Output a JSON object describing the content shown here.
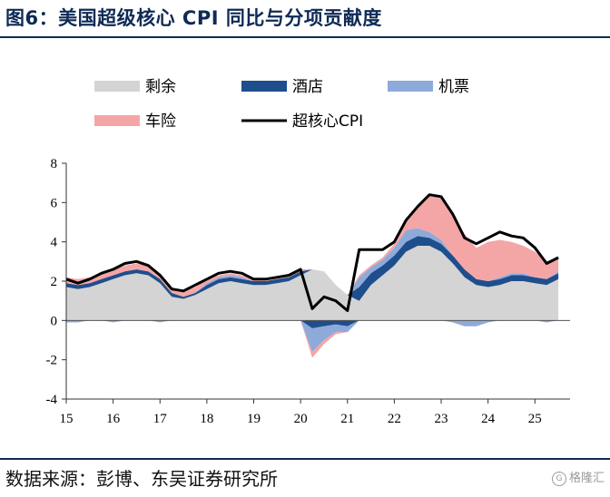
{
  "title": "图6：美国超级核心 CPI 同比与分项贡献度",
  "source": "数据来源：彭博、东吴证券研究所",
  "watermark": "格隆汇",
  "colors": {
    "remainder": "#d4d4d4",
    "hotel": "#1f4e8c",
    "airfare": "#8eaadb",
    "auto_insurance": "#f4a6a6",
    "supercore": "#000000",
    "title": "#0f2a55"
  },
  "chart_data": {
    "type": "area",
    "title": "",
    "xlabel": "",
    "ylabel": "",
    "ylim": [
      -4,
      8
    ],
    "yticks": [
      -4,
      -2,
      0,
      2,
      4,
      6,
      8
    ],
    "xlim": [
      2015.0,
      2025.75
    ],
    "xtick_values": [
      2015,
      2016,
      2017,
      2018,
      2019,
      2020,
      2021,
      2022,
      2023,
      2024,
      2025
    ],
    "xtick_labels": [
      "15",
      "16",
      "17",
      "18",
      "19",
      "20",
      "21",
      "22",
      "23",
      "24",
      "25"
    ],
    "grid": false,
    "legend_position": "top",
    "x": [
      2015.0,
      2015.25,
      2015.5,
      2015.75,
      2016.0,
      2016.25,
      2016.5,
      2016.75,
      2017.0,
      2017.25,
      2017.5,
      2017.75,
      2018.0,
      2018.25,
      2018.5,
      2018.75,
      2019.0,
      2019.25,
      2019.5,
      2019.75,
      2020.0,
      2020.25,
      2020.5,
      2020.75,
      2021.0,
      2021.25,
      2021.5,
      2021.75,
      2022.0,
      2022.25,
      2022.5,
      2022.75,
      2023.0,
      2023.25,
      2023.5,
      2023.75,
      2024.0,
      2024.25,
      2024.5,
      2024.75,
      2025.0,
      2025.25,
      2025.5
    ],
    "series": [
      {
        "name": "剩余",
        "key": "remainder",
        "values": [
          1.7,
          1.6,
          1.7,
          1.9,
          2.1,
          2.3,
          2.4,
          2.3,
          1.9,
          1.2,
          1.1,
          1.3,
          1.6,
          1.9,
          2.0,
          1.9,
          1.8,
          1.8,
          1.9,
          2.0,
          2.3,
          2.6,
          2.5,
          1.8,
          1.3,
          1.0,
          1.8,
          2.3,
          2.8,
          3.5,
          3.8,
          3.8,
          3.5,
          2.9,
          2.2,
          1.8,
          1.7,
          1.8,
          2.0,
          2.0,
          1.9,
          1.8,
          2.1
        ]
      },
      {
        "name": "酒店",
        "key": "hotel",
        "values": [
          0.2,
          0.2,
          0.2,
          0.2,
          0.2,
          0.2,
          0.2,
          0.2,
          0.2,
          0.2,
          0.1,
          0.1,
          0.2,
          0.2,
          0.2,
          0.2,
          0.2,
          0.2,
          0.2,
          0.2,
          0.2,
          -0.4,
          -0.3,
          -0.2,
          -0.3,
          0.7,
          0.6,
          0.5,
          0.5,
          0.5,
          0.5,
          0.4,
          0.4,
          0.4,
          0.4,
          0.3,
          0.3,
          0.3,
          0.3,
          0.3,
          0.3,
          0.3,
          0.3
        ]
      },
      {
        "name": "机票",
        "key": "airfare",
        "values": [
          -0.1,
          -0.1,
          0.0,
          0.0,
          -0.1,
          0.0,
          0.0,
          0.0,
          -0.1,
          0.0,
          0.0,
          0.0,
          0.1,
          0.1,
          0.1,
          0.1,
          0.0,
          0.0,
          0.0,
          0.0,
          0.0,
          -1.2,
          -0.7,
          -0.4,
          -0.3,
          0.5,
          0.3,
          0.3,
          0.4,
          0.6,
          0.4,
          0.3,
          0.2,
          -0.1,
          -0.3,
          -0.3,
          -0.1,
          0.1,
          0.1,
          0.1,
          0.0,
          -0.1,
          0.1
        ]
      },
      {
        "name": "车险",
        "key": "auto_insurance",
        "values": [
          0.3,
          0.3,
          0.3,
          0.3,
          0.3,
          0.3,
          0.3,
          0.3,
          0.3,
          0.3,
          0.3,
          0.3,
          0.2,
          0.1,
          0.1,
          0.1,
          0.1,
          0.1,
          0.1,
          0.1,
          0.1,
          -0.3,
          -0.2,
          -0.1,
          0.0,
          0.1,
          0.1,
          0.1,
          0.2,
          0.5,
          1.1,
          1.8,
          2.2,
          2.1,
          1.8,
          1.6,
          2.0,
          1.9,
          1.6,
          1.4,
          1.3,
          0.9,
          0.7
        ]
      },
      {
        "name": "超核心CPI",
        "key": "supercore",
        "values": [
          2.1,
          1.9,
          2.1,
          2.4,
          2.6,
          2.9,
          3.0,
          2.8,
          2.3,
          1.6,
          1.5,
          1.8,
          2.1,
          2.4,
          2.5,
          2.4,
          2.1,
          2.1,
          2.2,
          2.3,
          2.6,
          0.6,
          1.2,
          1.0,
          0.5,
          3.6,
          3.6,
          3.6,
          4.0,
          5.1,
          5.8,
          6.4,
          6.3,
          5.4,
          4.2,
          3.9,
          4.2,
          4.5,
          4.3,
          4.2,
          3.7,
          2.9,
          3.2
        ]
      }
    ]
  }
}
